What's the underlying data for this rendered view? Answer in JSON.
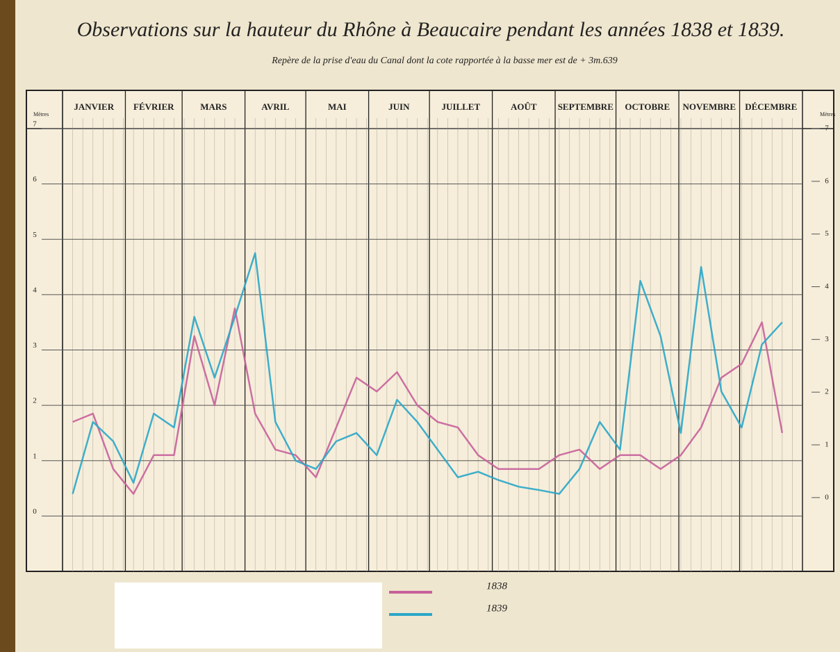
{
  "chart_data": {
    "type": "line",
    "title": "Observations sur la hauteur du Rhône à Beaucaire pendant les années 1838 et 1839.",
    "subtitle": "Repère de la prise d'eau du Canal dont la cote rapportée à la basse mer est de + 3m.639",
    "y_label": "Mètres",
    "y2_label": "Mètres",
    "x": [
      5,
      15,
      25,
      35,
      45,
      55,
      65,
      75,
      85,
      95,
      105,
      115,
      125,
      135,
      145,
      155,
      165,
      175,
      185,
      195,
      205,
      215,
      225,
      235,
      245,
      255,
      265,
      275,
      285,
      295,
      305,
      315,
      325,
      335,
      345,
      355
    ],
    "xlim": [
      0,
      365
    ],
    "xticks": [
      {
        "value": 0,
        "label": "JANVIER"
      },
      {
        "value": 31,
        "label": "FÉVRIER"
      },
      {
        "value": 59,
        "label": "MARS"
      },
      {
        "value": 90,
        "label": "AVRIL"
      },
      {
        "value": 120,
        "label": "MAI"
      },
      {
        "value": 151,
        "label": "JUIN"
      },
      {
        "value": 181,
        "label": "JUILLET"
      },
      {
        "value": 212,
        "label": "AOÛT"
      },
      {
        "value": 243,
        "label": "SEPTEMBRE"
      },
      {
        "value": 273,
        "label": "OCTOBRE"
      },
      {
        "value": 304,
        "label": "NOVEMBRE"
      },
      {
        "value": 334,
        "label": "DÉCEMBRE"
      }
    ],
    "ylim": [
      -1,
      7
    ],
    "yticks": [
      0,
      1,
      2,
      3,
      4,
      5,
      6,
      7
    ],
    "y2lim": [
      -1.4,
      7
    ],
    "y2ticks": [
      0,
      1,
      2,
      3,
      4,
      5,
      6,
      7
    ],
    "grid": true,
    "series": [
      {
        "name": "1838",
        "color": "#c8609a",
        "values": [
          1.7,
          1.85,
          0.85,
          0.4,
          1.1,
          1.1,
          3.25,
          2.0,
          3.75,
          1.85,
          1.2,
          1.1,
          0.7,
          1.6,
          2.5,
          2.25,
          2.6,
          2.0,
          1.7,
          1.6,
          1.1,
          0.85,
          0.85,
          0.85,
          1.1,
          1.2,
          0.85,
          1.1,
          1.1,
          0.85,
          1.1,
          1.6,
          2.5,
          2.75,
          3.5,
          1.5
        ]
      },
      {
        "name": "1839",
        "color": "#2aa6c8",
        "values": [
          0.4,
          1.7,
          1.35,
          0.6,
          1.85,
          1.6,
          3.6,
          2.5,
          3.6,
          4.75,
          1.7,
          1.0,
          0.85,
          1.35,
          1.5,
          1.1,
          2.1,
          1.7,
          1.2,
          0.7,
          0.8,
          0.65,
          0.53,
          0.47,
          0.4,
          0.85,
          1.7,
          1.2,
          4.25,
          3.25,
          1.5,
          4.5,
          2.25,
          1.6,
          3.1,
          3.5
        ]
      }
    ]
  }
}
